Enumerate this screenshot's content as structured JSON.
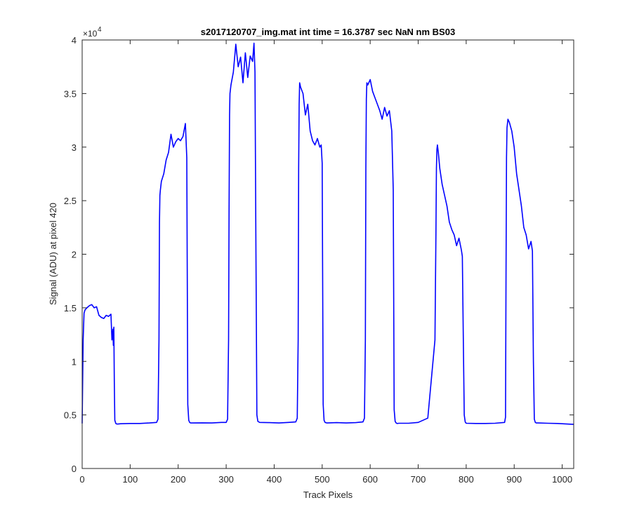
{
  "chart_data": {
    "type": "line",
    "title": "s2017120707_img.mat int time = 16.3787 sec  NaN nm BS03",
    "xlabel": "Track Pixels",
    "ylabel": "Signal (ADU) at pixel 420",
    "y_exponent_label": "×10",
    "y_exponent_power": "4",
    "xlim": [
      0,
      1024
    ],
    "ylim": [
      0,
      40000
    ],
    "x_ticks": [
      0,
      100,
      200,
      300,
      400,
      500,
      600,
      700,
      800,
      900,
      1000
    ],
    "x_tick_labels": [
      "0",
      "100",
      "200",
      "300",
      "400",
      "500",
      "600",
      "700",
      "800",
      "900",
      "1000"
    ],
    "y_ticks": [
      0,
      5000,
      10000,
      15000,
      20000,
      25000,
      30000,
      35000,
      40000
    ],
    "y_tick_labels": [
      "0",
      "0.5",
      "1",
      "1.5",
      "2",
      "2.5",
      "3",
      "3.5",
      "4"
    ],
    "grid": false,
    "line_color": "#0000ff",
    "series": [
      {
        "x": [
          0,
          2,
          4,
          6,
          10,
          15,
          20,
          25,
          30,
          35,
          40,
          45,
          50,
          55,
          60,
          62,
          64,
          65,
          66,
          67,
          68,
          70,
          72,
          75,
          80,
          100,
          120,
          140,
          155,
          158,
          160,
          161,
          162,
          163,
          165,
          170,
          175,
          180,
          185,
          190,
          195,
          200,
          205,
          210,
          215,
          218,
          220,
          222,
          224,
          226,
          230,
          250,
          270,
          290,
          300,
          303,
          305,
          306,
          307,
          308,
          310,
          315,
          320,
          325,
          330,
          335,
          340,
          345,
          350,
          355,
          358,
          360,
          362,
          364,
          366,
          370,
          390,
          410,
          430,
          445,
          448,
          450,
          451,
          452,
          453,
          455,
          460,
          465,
          470,
          475,
          480,
          485,
          490,
          495,
          498,
          500,
          502,
          504,
          506,
          510,
          530,
          550,
          570,
          585,
          588,
          590,
          591,
          592,
          593,
          595,
          600,
          605,
          610,
          615,
          620,
          625,
          630,
          635,
          640,
          645,
          648,
          650,
          652,
          654,
          656,
          660,
          680,
          700,
          720,
          735,
          737,
          738,
          739,
          740,
          742,
          745,
          750,
          755,
          760,
          765,
          770,
          775,
          780,
          785,
          790,
          792,
          794,
          796,
          798,
          800,
          820,
          840,
          860,
          880,
          882,
          883,
          884,
          885,
          887,
          890,
          895,
          900,
          905,
          910,
          915,
          920,
          925,
          930,
          935,
          938,
          940,
          942,
          944,
          946,
          950,
          970,
          990,
          1010,
          1024
        ],
        "y": [
          4200,
          12000,
          14500,
          14800,
          15000,
          15200,
          15300,
          15000,
          15100,
          14300,
          14100,
          14000,
          14300,
          14200,
          14400,
          12000,
          13000,
          11500,
          13200,
          8000,
          4500,
          4200,
          4150,
          4150,
          4180,
          4200,
          4200,
          4250,
          4300,
          4600,
          12000,
          23000,
          25500,
          26000,
          26800,
          27500,
          28800,
          29500,
          31200,
          30000,
          30500,
          30800,
          30600,
          31000,
          32200,
          29000,
          6000,
          4500,
          4300,
          4250,
          4250,
          4260,
          4250,
          4300,
          4300,
          4600,
          12000,
          24000,
          33000,
          35000,
          35800,
          37000,
          39600,
          37500,
          38400,
          36000,
          38800,
          36500,
          38500,
          38000,
          39700,
          37000,
          20000,
          5000,
          4400,
          4300,
          4280,
          4250,
          4300,
          4350,
          4700,
          12000,
          28000,
          34000,
          36000,
          35600,
          35000,
          33000,
          34000,
          31500,
          30600,
          30200,
          30800,
          30000,
          30200,
          28500,
          6000,
          4500,
          4300,
          4250,
          4280,
          4250,
          4280,
          4350,
          4700,
          12000,
          28000,
          34500,
          36000,
          35800,
          36300,
          35200,
          34600,
          34000,
          33400,
          32600,
          33700,
          32900,
          33400,
          31500,
          26000,
          5500,
          4400,
          4250,
          4200,
          4220,
          4220,
          4300,
          4700,
          12000,
          22000,
          28000,
          29800,
          30200,
          29500,
          28000,
          26500,
          25500,
          24500,
          23000,
          22300,
          21800,
          20800,
          21500,
          20400,
          19800,
          12000,
          5000,
          4350,
          4220,
          4200,
          4200,
          4220,
          4300,
          4800,
          18000,
          29000,
          31800,
          32600,
          32300,
          31500,
          30000,
          27500,
          26000,
          24500,
          22500,
          21800,
          20500,
          21200,
          20300,
          10000,
          4600,
          4300,
          4250,
          4250,
          4220,
          4200,
          4150,
          4120
        ]
      }
    ]
  }
}
